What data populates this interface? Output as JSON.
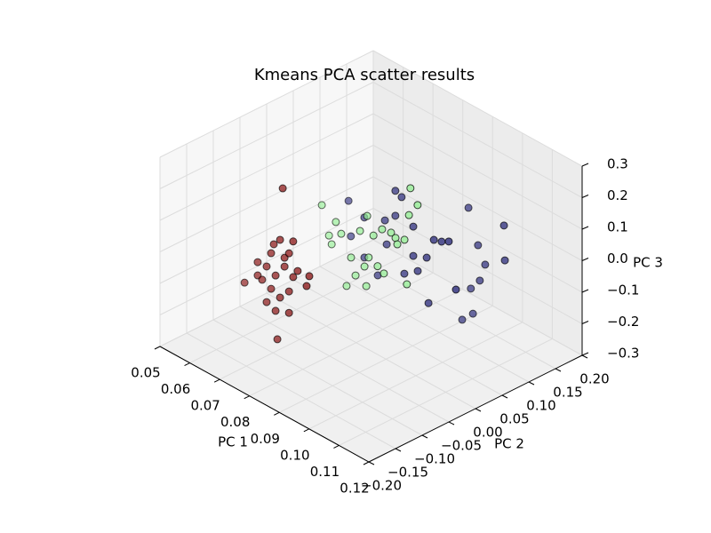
{
  "chart_data": {
    "type": "scatter3d",
    "title": "Kmeans PCA scatter results",
    "xlabel": "PC 1",
    "ylabel": "PC 2",
    "zlabel": "PC 3",
    "xlim": [
      0.05,
      0.12
    ],
    "ylim": [
      -0.2,
      0.2
    ],
    "zlim": [
      -0.3,
      0.3
    ],
    "xticks": [
      0.05,
      0.06,
      0.07,
      0.08,
      0.09,
      {
        "value": 0.1,
        "label": "0.10"
      },
      0.11,
      0.12
    ],
    "yticks": [
      {
        "value": -0.2,
        "label": "−0.20"
      },
      {
        "value": -0.15,
        "label": "−0.15"
      },
      {
        "value": -0.1,
        "label": "−0.10"
      },
      {
        "value": -0.05,
        "label": "−0.05"
      },
      {
        "value": 0,
        "label": "0.00"
      },
      0.05,
      {
        "value": 0.1,
        "label": "0.10"
      },
      0.15,
      {
        "value": 0.2,
        "label": "0.20"
      }
    ],
    "zticks": [
      {
        "value": -0.3,
        "label": "−0.3"
      },
      {
        "value": -0.2,
        "label": "−0.2"
      },
      {
        "value": -0.1,
        "label": "−0.1"
      },
      {
        "value": 0,
        "label": "0.0"
      },
      0.1,
      0.2,
      0.3
    ],
    "grid": true,
    "series": [
      {
        "color": "#800000",
        "x": [
          0.0697,
          0.0688,
          0.0732,
          0.0718,
          0.0658,
          0.0613,
          0.0643,
          0.0703,
          0.0747,
          0.0673,
          0.0628,
          0.0569,
          0.0658,
          0.0718,
          0.0777,
          0.0688,
          0.0643,
          0.0673,
          0.0718,
          0.0679,
          0.0703,
          0.0667,
          0.0732,
          0.0613,
          0.0786
        ],
        "y": [
          -0.08,
          -0.08,
          -0.08,
          -0.08,
          -0.08,
          -0.08,
          -0.08,
          -0.08,
          -0.08,
          -0.08,
          -0.08,
          -0.08,
          -0.08,
          -0.08,
          -0.08,
          -0.08,
          -0.08,
          -0.08,
          -0.08,
          -0.08,
          -0.08,
          -0.08,
          -0.08,
          -0.08,
          -0.08
        ],
        "z": [
          0.203,
          0.035,
          0.053,
          0.008,
          -0.023,
          -0.075,
          -0.073,
          -0.042,
          -0.033,
          -0.086,
          -0.123,
          -0.163,
          -0.136,
          -0.113,
          -0.065,
          -0.148,
          -0.186,
          -0.198,
          -0.181,
          -0.285,
          -0.014,
          0.01,
          -0.06,
          -0.117,
          -0.029
        ]
      },
      {
        "color": "#90ee90",
        "x": [
          0.0685,
          0.0732,
          0.075,
          0.0709,
          0.0718,
          0.0768,
          0.0813,
          0.0837,
          0.0858,
          0.0887,
          0.0917,
          0.0932,
          0.0977,
          0.1006,
          0.0982,
          0.0962,
          0.0842,
          0.0828,
          0.0872,
          0.097,
          0.0798,
          0.0834,
          0.0783,
          0.0938,
          0.0893
        ],
        "y": [
          0,
          0,
          0,
          0,
          0,
          0,
          0,
          0,
          0,
          0,
          0,
          0,
          0,
          0,
          0,
          0,
          0,
          0,
          0,
          0,
          0,
          0,
          0,
          0,
          0
        ],
        "z": [
          0.076,
          0.047,
          0.019,
          -0.008,
          -0.031,
          -0.137,
          0.061,
          0.121,
          0.07,
          0.105,
          0.11,
          0.101,
          0.197,
          0.244,
          0.285,
          0.111,
          -0.008,
          -0.044,
          -0.02,
          -0.026,
          -0.088,
          -0.103,
          -0.039,
          0.084,
          -0.032
        ]
      },
      {
        "color": "#191970",
        "x": [
          0.0703,
          0.0756,
          0.0825,
          0.086,
          0.0881,
          0.092,
          0.092,
          0.0965,
          0.0989,
          0.1015,
          0.1039,
          0.0962,
          0.0994,
          0.1018,
          0.1081,
          0.1084,
          0.1,
          0.097,
          0.1063,
          0.0941,
          0.0977,
          0.0971,
          0.0935,
          0.089,
          0.0801,
          0.0831,
          0.0756,
          0.0711,
          0.086
        ],
        "y": [
          0.04,
          0.04,
          0.04,
          0.04,
          0.04,
          0.04,
          0.04,
          0.04,
          0.04,
          0.04,
          0.04,
          0.12,
          0.12,
          0.12,
          0.12,
          0.12,
          0.12,
          0.12,
          0.04,
          0.12,
          0.12,
          0.04,
          0.04,
          0.04,
          0.04,
          0.04,
          0.04,
          0.04,
          0.04
        ],
        "z": [
          0.065,
          0.04,
          0.067,
          0.179,
          0.17,
          0.097,
          0.004,
          0.022,
          0.091,
          0.099,
          0.112,
          0.111,
          0.009,
          -0.04,
          0.117,
          0.008,
          -0.1,
          -0.141,
          -0.028,
          -0.255,
          -0.217,
          -0.119,
          -0.036,
          -0.068,
          -0.12,
          -0.006,
          -0.087,
          -0.043,
          0.1
        ]
      }
    ]
  }
}
